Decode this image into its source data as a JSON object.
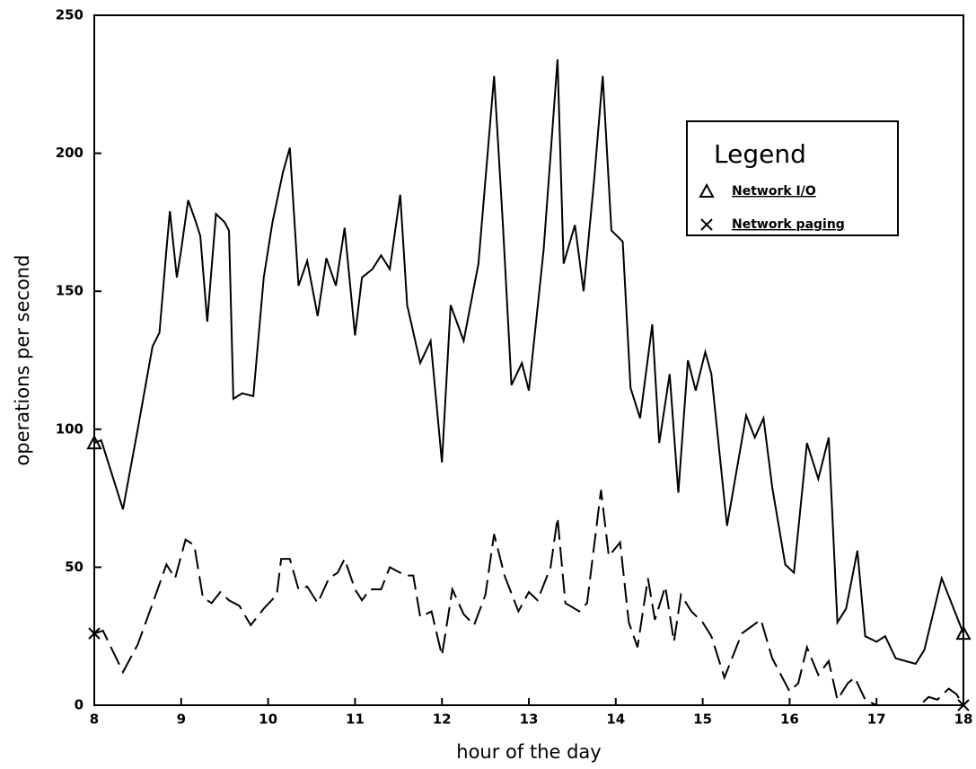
{
  "chart_data": {
    "type": "line",
    "legend_title": "Legend",
    "x_label": "hour of the day",
    "y_label": "operations per second",
    "xlim": [
      8,
      18
    ],
    "xticks": [
      8,
      9,
      10,
      11,
      12,
      13,
      14,
      15,
      16,
      17,
      18
    ],
    "ylim": [
      0,
      250
    ],
    "yticks": [
      0,
      50,
      100,
      150,
      200,
      250
    ],
    "legend_position": "upper right",
    "series": [
      {
        "name": "Network I/O",
        "color": "#000000",
        "line_style": "solid",
        "marker": "triangle",
        "x": [
          8.0,
          8.08,
          8.33,
          8.5,
          8.67,
          8.75,
          8.83,
          8.87,
          8.95,
          9.0,
          9.08,
          9.17,
          9.22,
          9.3,
          9.4,
          9.5,
          9.55,
          9.6,
          9.7,
          9.83,
          9.95,
          10.05,
          10.17,
          10.25,
          10.35,
          10.45,
          10.57,
          10.67,
          10.78,
          10.88,
          11.0,
          11.08,
          11.2,
          11.3,
          11.4,
          11.52,
          11.6,
          11.75,
          11.87,
          12.0,
          12.1,
          12.25,
          12.42,
          12.6,
          12.7,
          12.8,
          12.92,
          13.0,
          13.17,
          13.33,
          13.4,
          13.53,
          13.63,
          13.75,
          13.85,
          13.95,
          14.08,
          14.17,
          14.28,
          14.42,
          14.5,
          14.62,
          14.72,
          14.83,
          14.92,
          15.03,
          15.1,
          15.28,
          15.5,
          15.6,
          15.7,
          15.8,
          15.95,
          16.05,
          16.2,
          16.33,
          16.45,
          16.55,
          16.65,
          16.78,
          16.87,
          17.0,
          17.1,
          17.22,
          17.45,
          17.55,
          17.75,
          18.0
        ],
        "values": [
          95,
          96,
          71,
          100,
          130,
          135,
          165,
          179,
          155,
          165,
          183,
          175,
          170,
          139,
          178,
          175,
          172,
          111,
          113,
          112,
          155,
          175,
          193,
          202,
          152,
          161,
          141,
          162,
          152,
          173,
          134,
          155,
          158,
          163,
          158,
          185,
          145,
          124,
          132,
          88,
          145,
          132,
          160,
          228,
          175,
          116,
          124,
          114,
          165,
          234,
          160,
          174,
          150,
          190,
          228,
          172,
          168,
          115,
          104,
          138,
          95,
          120,
          77,
          125,
          114,
          128,
          120,
          65,
          105,
          97,
          104,
          79,
          51,
          48,
          95,
          82,
          97,
          30,
          35,
          56,
          25,
          23,
          25,
          17,
          15,
          20,
          46,
          26
        ]
      },
      {
        "name": "Network paging",
        "color": "#000000",
        "line_style": "dashed",
        "marker": "x",
        "x": [
          8.0,
          8.1,
          8.33,
          8.5,
          8.65,
          8.83,
          8.93,
          9.05,
          9.15,
          9.25,
          9.35,
          9.45,
          9.55,
          9.67,
          9.8,
          9.95,
          10.1,
          10.15,
          10.25,
          10.35,
          10.45,
          10.57,
          10.7,
          10.8,
          10.88,
          11.0,
          11.08,
          11.17,
          11.3,
          11.4,
          11.58,
          11.67,
          11.75,
          11.88,
          12.0,
          12.12,
          12.25,
          12.37,
          12.5,
          12.6,
          12.72,
          12.88,
          13.0,
          13.1,
          13.25,
          13.33,
          13.42,
          13.58,
          13.67,
          13.83,
          13.92,
          14.05,
          14.15,
          14.25,
          14.37,
          14.45,
          14.57,
          14.67,
          14.75,
          14.87,
          15.0,
          15.1,
          15.25,
          15.45,
          15.67,
          15.8,
          16.0,
          16.1,
          16.2,
          16.33,
          16.45,
          16.55,
          16.67,
          16.75,
          16.87,
          17.0,
          17.25,
          17.5,
          17.6,
          17.7,
          17.83,
          17.92,
          18.0
        ],
        "values": [
          26,
          27,
          12,
          22,
          35,
          51,
          46,
          60,
          58,
          39,
          37,
          41,
          38,
          36,
          29,
          35,
          40,
          53,
          53,
          42,
          43,
          37,
          46,
          48,
          53,
          42,
          38,
          42,
          42,
          50,
          47,
          47,
          32,
          34,
          18,
          42,
          33,
          29,
          40,
          62,
          47,
          34,
          41,
          38,
          50,
          68,
          37,
          34,
          37,
          78,
          54,
          59,
          30,
          21,
          46,
          31,
          43,
          23,
          40,
          34,
          30,
          25,
          10,
          26,
          31,
          17,
          5,
          8,
          21,
          11,
          16,
          2,
          8,
          10,
          2,
          0,
          0,
          0,
          3,
          2,
          6,
          4,
          0
        ]
      }
    ]
  }
}
